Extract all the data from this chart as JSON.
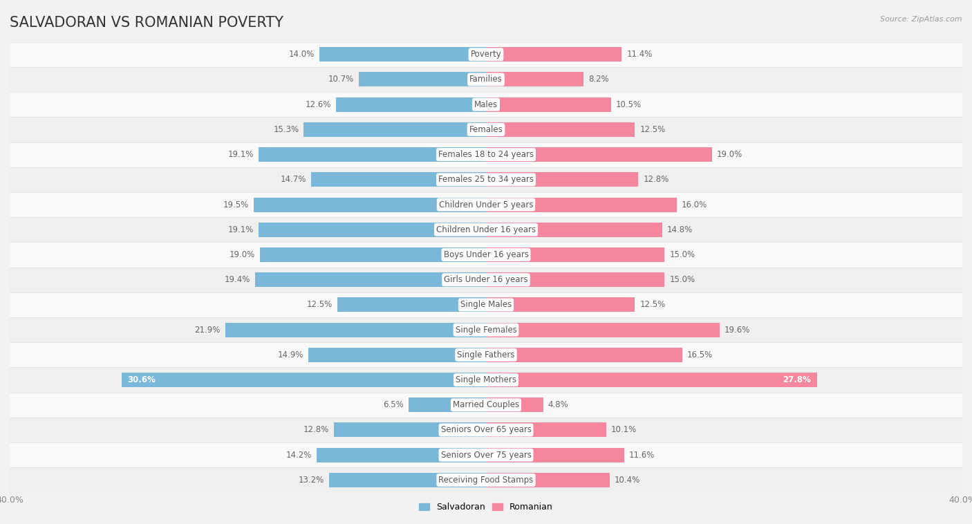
{
  "title": "SALVADORAN VS ROMANIAN POVERTY",
  "source": "Source: ZipAtlas.com",
  "categories": [
    "Poverty",
    "Families",
    "Males",
    "Females",
    "Females 18 to 24 years",
    "Females 25 to 34 years",
    "Children Under 5 years",
    "Children Under 16 years",
    "Boys Under 16 years",
    "Girls Under 16 years",
    "Single Males",
    "Single Females",
    "Single Fathers",
    "Single Mothers",
    "Married Couples",
    "Seniors Over 65 years",
    "Seniors Over 75 years",
    "Receiving Food Stamps"
  ],
  "salvadoran": [
    14.0,
    10.7,
    12.6,
    15.3,
    19.1,
    14.7,
    19.5,
    19.1,
    19.0,
    19.4,
    12.5,
    21.9,
    14.9,
    30.6,
    6.5,
    12.8,
    14.2,
    13.2
  ],
  "romanian": [
    11.4,
    8.2,
    10.5,
    12.5,
    19.0,
    12.8,
    16.0,
    14.8,
    15.0,
    15.0,
    12.5,
    19.6,
    16.5,
    27.8,
    4.8,
    10.1,
    11.6,
    10.4
  ],
  "salvadoran_color": "#7ab8d9",
  "romanian_color": "#f4879e",
  "background_color": "#f2f2f2",
  "row_colors": [
    "#fafafa",
    "#efefef"
  ],
  "axis_max": 40.0,
  "bar_height": 0.58,
  "title_fontsize": 15,
  "cat_fontsize": 8.5,
  "val_fontsize": 8.5,
  "tick_fontsize": 9,
  "legend_fontsize": 9
}
